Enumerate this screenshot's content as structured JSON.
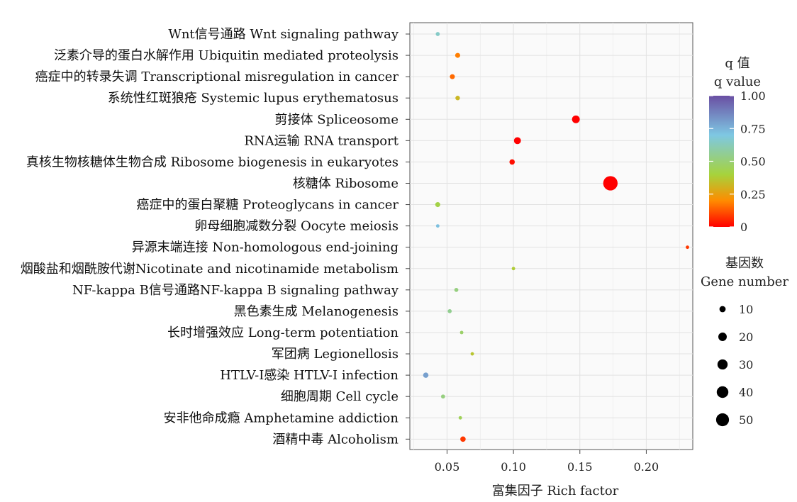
{
  "chart_data": {
    "type": "scatter",
    "xlabel": "富集因子 Rich factor",
    "xlim": [
      0.022,
      0.235
    ],
    "xticks": [
      0.05,
      0.1,
      0.15,
      0.2
    ],
    "xtick_labels": [
      "0.05",
      "0.10",
      "0.15",
      "0.20"
    ],
    "categories": [
      "Wnt信号通路 Wnt signaling pathway",
      "泛素介导的蛋白水解作用 Ubiquitin mediated proteolysis",
      "癌症中的转录失调 Transcriptional misregulation in cancer",
      "系统性红斑狼疮 Systemic lupus erythematosus",
      "剪接体 Spliceosome",
      "RNA运输 RNA transport",
      "真核生物核糖体生物合成 Ribosome biogenesis in eukaryotes",
      "核糖体 Ribosome",
      "癌症中的蛋白聚糖 Proteoglycans in cancer",
      "卵母细胞减数分裂 Oocyte meiosis",
      "异源末端连接 Non-homologous end-joining",
      "烟酸盐和烟酰胺代谢Nicotinate and nicotinamide metabolism",
      "NF-kappa B信号通路NF-kappa B signaling pathway",
      "黑色素生成 Melanogenesis",
      "长时增强效应 Long-term potentiation",
      "军团病 Legionellosis",
      "HTLV-I感染 HTLV-I infection",
      "细胞周期 Cell cycle",
      "安非他命成瘾 Amphetamine addiction",
      "酒精中毒 Alcoholism"
    ],
    "points": [
      {
        "x": 0.043,
        "qvalue": 0.65,
        "genes": 3
      },
      {
        "x": 0.058,
        "qvalue": 0.18,
        "genes": 5
      },
      {
        "x": 0.054,
        "qvalue": 0.15,
        "genes": 5
      },
      {
        "x": 0.058,
        "qvalue": 0.32,
        "genes": 4
      },
      {
        "x": 0.147,
        "qvalue": 0.0,
        "genes": 14
      },
      {
        "x": 0.103,
        "qvalue": 0.0,
        "genes": 11
      },
      {
        "x": 0.099,
        "qvalue": 0.02,
        "genes": 6
      },
      {
        "x": 0.173,
        "qvalue": 0.0,
        "genes": 54
      },
      {
        "x": 0.043,
        "qvalue": 0.42,
        "genes": 5
      },
      {
        "x": 0.043,
        "qvalue": 0.72,
        "genes": 2
      },
      {
        "x": 0.231,
        "qvalue": 0.08,
        "genes": 2
      },
      {
        "x": 0.1,
        "qvalue": 0.38,
        "genes": 2
      },
      {
        "x": 0.057,
        "qvalue": 0.52,
        "genes": 3
      },
      {
        "x": 0.052,
        "qvalue": 0.55,
        "genes": 3
      },
      {
        "x": 0.061,
        "qvalue": 0.48,
        "genes": 2
      },
      {
        "x": 0.069,
        "qvalue": 0.36,
        "genes": 2
      },
      {
        "x": 0.034,
        "qvalue": 0.8,
        "genes": 6
      },
      {
        "x": 0.047,
        "qvalue": 0.52,
        "genes": 3
      },
      {
        "x": 0.06,
        "qvalue": 0.45,
        "genes": 2
      },
      {
        "x": 0.062,
        "qvalue": 0.08,
        "genes": 6
      }
    ],
    "grid": true,
    "legend_position": "right",
    "color_legend": {
      "title_cn": "q 值",
      "title_en": "q value",
      "ticks": [
        1.0,
        0.75,
        0.5,
        0.25,
        0
      ],
      "tick_labels": [
        "1.00",
        "0.75",
        "0.50",
        "0.25",
        "0"
      ],
      "gradient": [
        "#e31a1c",
        "#ff8c00",
        "#a6d33c",
        "#7ec8e3",
        "#6a4fa3"
      ]
    },
    "size_legend": {
      "title_cn": "基因数",
      "title_en": "Gene number",
      "values": [
        10,
        20,
        30,
        40,
        50
      ],
      "labels": [
        "10",
        "20",
        "30",
        "40",
        "50"
      ]
    }
  }
}
